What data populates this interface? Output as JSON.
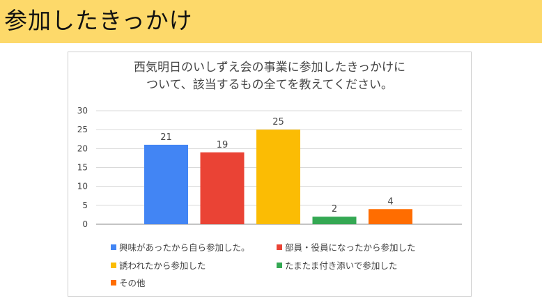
{
  "header": {
    "title": "参加したきっかけ"
  },
  "chart_data": {
    "type": "bar",
    "title_line1": "西気明日のいしずえ会の事業に参加したきっかけに",
    "title_line2": "ついて、該当するもの全てを教えてください。",
    "xlabel": "",
    "ylabel": "",
    "ylim": [
      0,
      30
    ],
    "yticks": [
      "30",
      "25",
      "20",
      "15",
      "10",
      "5",
      "0"
    ],
    "grid": true,
    "legend_position": "bottom",
    "series": [
      {
        "name": "興味があったから自ら参加した。",
        "value": 21,
        "color": "#4285f4"
      },
      {
        "name": "部員・役員になったから参加した",
        "value": 19,
        "color": "#ea4335"
      },
      {
        "name": "誘われたから参加した",
        "value": 25,
        "color": "#fbbc04"
      },
      {
        "name": "たまたま付き添いで参加した",
        "value": 2,
        "color": "#34a853"
      },
      {
        "name": "その他",
        "value": 4,
        "color": "#ff6d01"
      }
    ]
  }
}
